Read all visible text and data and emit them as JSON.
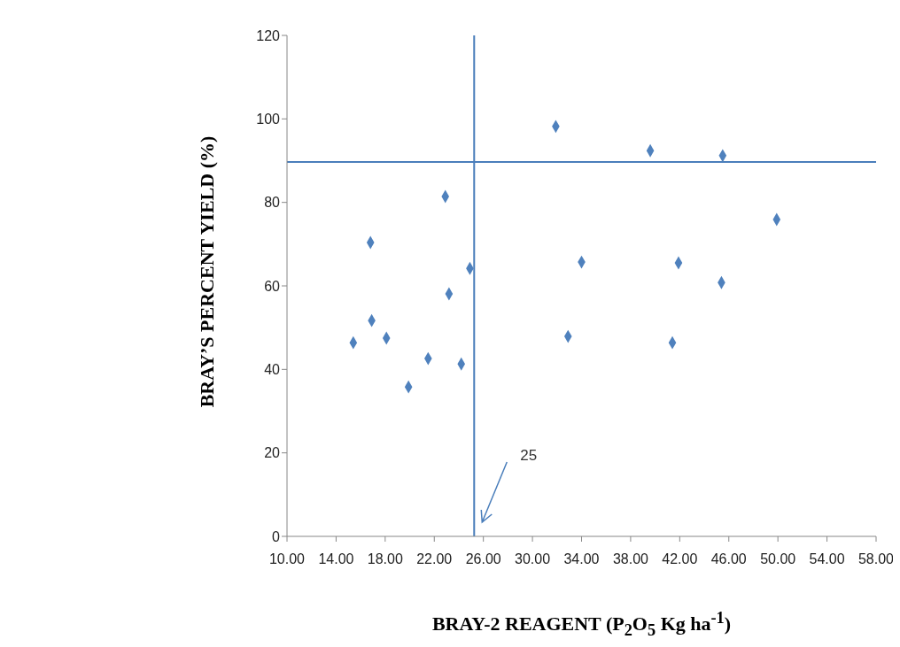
{
  "chart_data": {
    "type": "scatter",
    "xlabel": "BRAY-2 REAGENT (P$_{2}$O$_{5}$ Kg ha$^{-1}$)",
    "ylabel": "BRAY’S PERCENT YIELD (%)",
    "x": [
      15.4,
      16.8,
      16.9,
      18.1,
      19.9,
      21.5,
      22.9,
      23.2,
      24.2,
      24.9,
      31.9,
      32.9,
      34.0,
      39.6,
      41.4,
      41.9,
      45.4,
      45.5,
      49.9
    ],
    "series": [
      {
        "color": "#4f81bd",
        "values": [
          46.4,
          70.4,
          51.7,
          47.5,
          35.8,
          42.6,
          81.4,
          58.1,
          41.3,
          64.2,
          98.2,
          47.9,
          65.7,
          92.4,
          46.4,
          65.5,
          60.8,
          91.2,
          75.9
        ]
      }
    ],
    "marker": "diamond",
    "xlim": [
      10,
      58
    ],
    "xticks": [
      {
        "value": 10,
        "label": "10.00"
      },
      {
        "value": 14,
        "label": "14.00"
      },
      {
        "value": 18,
        "label": "18.00"
      },
      {
        "value": 22,
        "label": "22.00"
      },
      {
        "value": 26,
        "label": "26.00"
      },
      {
        "value": 30,
        "label": "30.00"
      },
      {
        "value": 34,
        "label": "34.00"
      },
      {
        "value": 38,
        "label": "38.00"
      },
      {
        "value": 42,
        "label": "42.00"
      },
      {
        "value": 46,
        "label": "46.00"
      },
      {
        "value": 50,
        "label": "50.00"
      },
      {
        "value": 54,
        "label": "54.00"
      },
      {
        "value": 58,
        "label": "58.00"
      }
    ],
    "ylim": [
      0,
      120
    ],
    "yticks": [
      0,
      20,
      40,
      60,
      80,
      100,
      120
    ],
    "ref_lines": [
      {
        "axis": "x",
        "value": 25.25,
        "label": "25",
        "color": "#4a7ebb"
      },
      {
        "axis": "y",
        "value": 89.7,
        "color": "#4a7ebb"
      }
    ]
  }
}
